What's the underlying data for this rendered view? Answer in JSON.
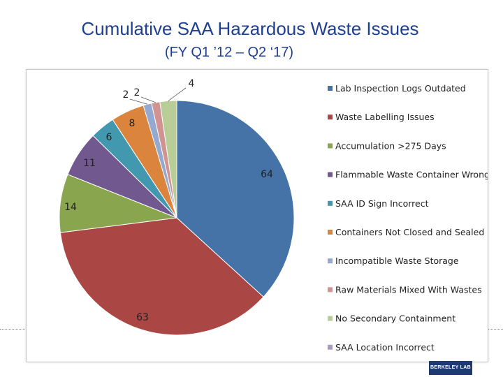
{
  "header": {
    "title": "Cumulative SAA Hazardous Waste Issues",
    "subtitle": "(FY Q1 ’12 – Q2 ‘17)"
  },
  "footer": {
    "logo_text": "BERKELEY LAB"
  },
  "chart_data": {
    "type": "pie",
    "title": "Cumulative SAA Hazardous Waste Issues",
    "subtitle": "(FY Q1 ’12 – Q2 ‘17)",
    "legend_position": "right",
    "start": "12-o'clock",
    "direction": "clockwise",
    "slices": [
      {
        "label": "Lab Inspection Logs Outdated",
        "value": 64,
        "color": "#4572a7",
        "data_label": "64"
      },
      {
        "label": "Waste Labelling Issues",
        "value": 63,
        "color": "#aa4643",
        "data_label": "63"
      },
      {
        "label": "Accumulation >275 Days",
        "value": 14,
        "color": "#89a54e",
        "data_label": "14"
      },
      {
        "label": "Flammable Waste Container Wrong",
        "value": 11,
        "color": "#71588f",
        "data_label": "11"
      },
      {
        "label": "SAA ID Sign Incorrect",
        "value": 6,
        "color": "#4198af",
        "data_label": "6"
      },
      {
        "label": "Containers Not Closed and Sealed",
        "value": 8,
        "color": "#db843d",
        "data_label": "8"
      },
      {
        "label": "Incompatible Waste Storage",
        "value": 2,
        "color": "#93a9cf",
        "data_label": "2"
      },
      {
        "label": "Raw Materials Mixed With Wastes",
        "value": 2,
        "color": "#d19392",
        "data_label": "2"
      },
      {
        "label": "No Secondary Containment",
        "value": 4,
        "color": "#b9cd96",
        "data_label": "4"
      },
      {
        "label": "SAA Location Incorrect",
        "value": 0,
        "color": "#a99bbd",
        "data_label": ""
      }
    ]
  }
}
